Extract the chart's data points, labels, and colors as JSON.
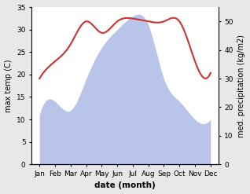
{
  "months": [
    "Jan",
    "Feb",
    "Mar",
    "Apr",
    "May",
    "Jun",
    "Jul",
    "Aug",
    "Sep",
    "Oct",
    "Nov",
    "Dec"
  ],
  "temp": [
    11,
    14,
    12,
    19,
    26,
    30,
    33,
    31,
    19,
    14,
    10,
    10
  ],
  "precip": [
    30,
    36,
    42,
    50,
    46,
    50,
    51,
    50,
    50,
    50,
    36,
    32
  ],
  "temp_fill_color": "#b8c4e8",
  "precip_color": "#cc3333",
  "temp_ylim": [
    0,
    35
  ],
  "precip_ylim": [
    0,
    55
  ],
  "xlabel": "date (month)",
  "ylabel_left": "max temp (C)",
  "ylabel_right": "med. precipitation (kg/m2)",
  "bg_color": "#ffffff",
  "fig_bg_color": "#e8e8e8",
  "temp_yticks": [
    0,
    5,
    10,
    15,
    20,
    25,
    30,
    35
  ],
  "precip_yticks": [
    0,
    10,
    20,
    30,
    40,
    50
  ]
}
